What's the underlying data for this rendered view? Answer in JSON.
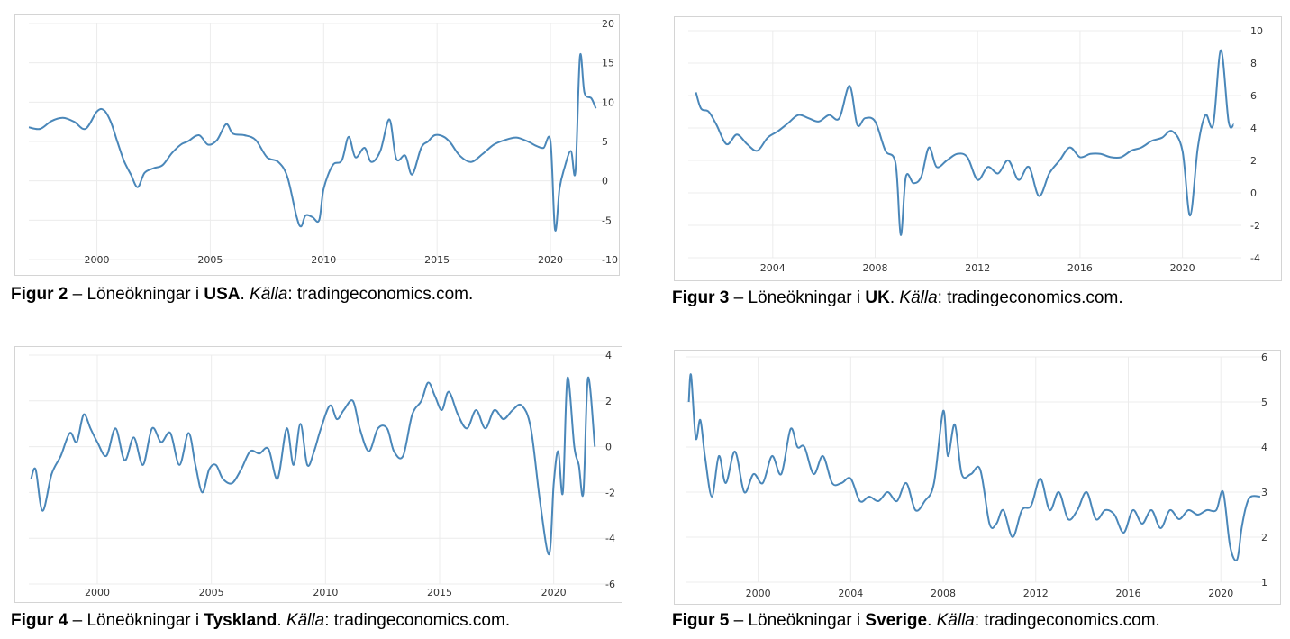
{
  "chart_data": [
    {
      "type": "line",
      "country": "USA",
      "caption": {
        "fig": "Figur 2",
        "dash": " – Löneökningar i ",
        "country": "USA",
        "dot": ". ",
        "source_label": "Källa",
        "source": ": tradingeconomics.com."
      },
      "xticks": [
        2000,
        2005,
        2010,
        2015,
        2020
      ],
      "xlim": [
        1997.0,
        2022.5
      ],
      "yticks": [
        20,
        15,
        10,
        5,
        0,
        -5,
        -10
      ],
      "ylim": [
        -10,
        20
      ],
      "series": [
        {
          "x": [
            1997.0,
            1997.5,
            1998.0,
            1998.5,
            1999.0,
            1999.5,
            2000.0,
            2000.3,
            2000.6,
            2000.9,
            2001.2,
            2001.5,
            2001.8,
            2002.1,
            2002.5,
            2002.9,
            2003.3,
            2003.7,
            2004.0,
            2004.5,
            2004.9,
            2005.3,
            2005.7,
            2006.0,
            2006.5,
            2007.0,
            2007.5,
            2008.0,
            2008.4,
            2008.8,
            2009.0,
            2009.2,
            2009.5,
            2009.8,
            2010.0,
            2010.4,
            2010.8,
            2011.1,
            2011.4,
            2011.8,
            2012.1,
            2012.5,
            2012.9,
            2013.2,
            2013.6,
            2013.9,
            2014.3,
            2014.6,
            2014.9,
            2015.3,
            2015.6,
            2016.0,
            2016.5,
            2017.0,
            2017.5,
            2018.0,
            2018.5,
            2019.0,
            2019.4,
            2019.7,
            2020.0,
            2020.2,
            2020.4,
            2020.6,
            2020.9,
            2021.1,
            2021.3,
            2021.5,
            2021.8,
            2022.0
          ],
          "y": [
            6.8,
            6.6,
            7.6,
            8.0,
            7.5,
            6.6,
            8.8,
            9.0,
            7.6,
            5.0,
            2.5,
            0.8,
            -0.8,
            1.0,
            1.6,
            2.0,
            3.5,
            4.6,
            5.0,
            5.8,
            4.6,
            5.2,
            7.2,
            6.0,
            5.8,
            5.2,
            3.0,
            2.4,
            0.5,
            -4.5,
            -5.8,
            -4.4,
            -4.6,
            -5.0,
            -1.0,
            2.0,
            2.6,
            5.6,
            3.0,
            4.2,
            2.4,
            3.8,
            7.8,
            2.8,
            3.2,
            0.8,
            4.2,
            5.0,
            5.8,
            5.6,
            4.8,
            3.2,
            2.4,
            3.4,
            4.6,
            5.2,
            5.5,
            5.0,
            4.4,
            4.2,
            5.0,
            -6.2,
            -1.0,
            1.5,
            3.8,
            1.2,
            15.8,
            11.2,
            10.5,
            9.2
          ]
        }
      ]
    },
    {
      "type": "line",
      "country": "UK",
      "caption": {
        "fig": "Figur 3",
        "dash": " – Löneökningar i ",
        "country": "UK",
        "dot": ". ",
        "source_label": "Källa",
        "source": ": tradingeconomics.com."
      },
      "xticks": [
        2004,
        2008,
        2012,
        2016,
        2020
      ],
      "xlim": [
        2000.7,
        2022.3
      ],
      "yticks": [
        10,
        8,
        6,
        4,
        2,
        0,
        -2,
        -4
      ],
      "ylim": [
        -4,
        10
      ],
      "series": [
        {
          "x": [
            2001.0,
            2001.2,
            2001.5,
            2001.8,
            2002.2,
            2002.6,
            2003.0,
            2003.4,
            2003.8,
            2004.2,
            2004.6,
            2005.0,
            2005.4,
            2005.8,
            2006.2,
            2006.6,
            2007.0,
            2007.3,
            2007.6,
            2008.0,
            2008.4,
            2008.8,
            2009.0,
            2009.2,
            2009.5,
            2009.8,
            2010.1,
            2010.4,
            2010.8,
            2011.2,
            2011.6,
            2012.0,
            2012.4,
            2012.8,
            2013.2,
            2013.6,
            2014.0,
            2014.4,
            2014.8,
            2015.2,
            2015.6,
            2016.0,
            2016.4,
            2016.8,
            2017.2,
            2017.6,
            2018.0,
            2018.4,
            2018.8,
            2019.2,
            2019.6,
            2020.0,
            2020.3,
            2020.6,
            2020.9,
            2021.2,
            2021.5,
            2021.8,
            2022.0
          ],
          "y": [
            6.2,
            5.2,
            5.0,
            4.2,
            3.0,
            3.6,
            3.0,
            2.6,
            3.4,
            3.8,
            4.3,
            4.8,
            4.6,
            4.4,
            4.8,
            4.6,
            6.6,
            4.2,
            4.6,
            4.4,
            2.6,
            1.8,
            -2.6,
            1.0,
            0.6,
            1.0,
            2.8,
            1.6,
            2.0,
            2.4,
            2.2,
            0.8,
            1.6,
            1.2,
            2.0,
            0.8,
            1.6,
            -0.2,
            1.2,
            2.0,
            2.8,
            2.2,
            2.4,
            2.4,
            2.2,
            2.2,
            2.6,
            2.8,
            3.2,
            3.4,
            3.8,
            2.6,
            -1.4,
            2.8,
            4.8,
            4.2,
            8.8,
            4.4,
            4.2
          ]
        }
      ]
    },
    {
      "type": "line",
      "country": "Tyskland",
      "caption": {
        "fig": "Figur 4",
        "dash": " – Löneökningar i ",
        "country": "Tyskland",
        "dot": ". ",
        "source_label": "Källa",
        "source": ": tradingeconomics.com."
      },
      "xticks": [
        2000,
        2005,
        2010,
        2015,
        2020
      ],
      "xlim": [
        1997.0,
        2022.5
      ],
      "yticks": [
        4,
        2,
        0,
        -2,
        -4,
        -6
      ],
      "ylim": [
        -6,
        4
      ],
      "series": [
        {
          "x": [
            1997.1,
            1997.3,
            1997.6,
            1998.0,
            1998.4,
            1998.8,
            1999.1,
            1999.4,
            1999.7,
            2000.0,
            2000.4,
            2000.8,
            2001.2,
            2001.6,
            2002.0,
            2002.4,
            2002.8,
            2003.2,
            2003.6,
            2004.0,
            2004.3,
            2004.6,
            2004.9,
            2005.2,
            2005.5,
            2005.9,
            2006.3,
            2006.7,
            2007.1,
            2007.5,
            2007.9,
            2008.3,
            2008.6,
            2008.9,
            2009.2,
            2009.5,
            2009.8,
            2010.2,
            2010.5,
            2010.8,
            2011.2,
            2011.5,
            2011.9,
            2012.3,
            2012.7,
            2013.0,
            2013.4,
            2013.8,
            2014.2,
            2014.5,
            2014.8,
            2015.1,
            2015.4,
            2015.8,
            2016.2,
            2016.6,
            2017.0,
            2017.4,
            2017.8,
            2018.2,
            2018.6,
            2019.0,
            2019.4,
            2019.8,
            2020.0,
            2020.2,
            2020.4,
            2020.6,
            2020.9,
            2021.1,
            2021.3,
            2021.5,
            2021.8
          ],
          "y": [
            -1.4,
            -1.0,
            -2.8,
            -1.2,
            -0.4,
            0.6,
            0.2,
            1.4,
            0.8,
            0.2,
            -0.4,
            0.8,
            -0.6,
            0.4,
            -0.8,
            0.8,
            0.2,
            0.6,
            -0.8,
            0.6,
            -0.8,
            -2.0,
            -1.0,
            -0.8,
            -1.4,
            -1.6,
            -1.0,
            -0.2,
            -0.3,
            -0.1,
            -1.4,
            0.8,
            -0.8,
            1.0,
            -0.8,
            -0.2,
            0.8,
            1.8,
            1.2,
            1.6,
            2.0,
            0.8,
            -0.2,
            0.8,
            0.8,
            -0.2,
            -0.4,
            1.4,
            2.0,
            2.8,
            2.2,
            1.6,
            2.4,
            1.4,
            0.8,
            1.6,
            0.8,
            1.6,
            1.2,
            1.6,
            1.8,
            0.8,
            -2.4,
            -4.7,
            -1.6,
            -0.2,
            -2.0,
            3.0,
            0.0,
            -0.8,
            -2.0,
            3.0,
            0.0
          ]
        }
      ]
    },
    {
      "type": "line",
      "country": "Sverige",
      "caption": {
        "fig": "Figur 5",
        "dash": " – Löneökningar i ",
        "country": "Sverige",
        "dot": ". ",
        "source_label": "Källa",
        "source": ": tradingeconomics.com."
      },
      "xticks": [
        2000,
        2004,
        2008,
        2012,
        2016,
        2020
      ],
      "xlim": [
        1996.9,
        2021.9
      ],
      "yticks": [
        6,
        5,
        4,
        3,
        2,
        1
      ],
      "ylim": [
        1,
        6
      ],
      "series": [
        {
          "x": [
            1997.0,
            1997.1,
            1997.3,
            1997.5,
            1997.7,
            1998.0,
            1998.3,
            1998.6,
            1999.0,
            1999.4,
            1999.8,
            2000.2,
            2000.6,
            2001.0,
            2001.4,
            2001.7,
            2002.0,
            2002.4,
            2002.8,
            2003.2,
            2003.6,
            2004.0,
            2004.4,
            2004.8,
            2005.2,
            2005.6,
            2006.0,
            2006.4,
            2006.8,
            2007.2,
            2007.6,
            2008.0,
            2008.2,
            2008.5,
            2008.8,
            2009.2,
            2009.6,
            2010.0,
            2010.3,
            2010.6,
            2011.0,
            2011.4,
            2011.8,
            2012.2,
            2012.6,
            2013.0,
            2013.4,
            2013.8,
            2014.2,
            2014.6,
            2015.0,
            2015.4,
            2015.8,
            2016.2,
            2016.6,
            2017.0,
            2017.4,
            2017.8,
            2018.2,
            2018.6,
            2019.0,
            2019.4,
            2019.8,
            2020.1,
            2020.4,
            2020.7,
            2020.9,
            2021.1,
            2021.3,
            2021.7
          ],
          "y": [
            5.0,
            5.6,
            4.2,
            4.6,
            3.8,
            2.9,
            3.8,
            3.2,
            3.9,
            3.0,
            3.4,
            3.2,
            3.8,
            3.4,
            4.4,
            4.0,
            4.0,
            3.4,
            3.8,
            3.2,
            3.2,
            3.3,
            2.8,
            2.9,
            2.8,
            3.0,
            2.8,
            3.2,
            2.6,
            2.8,
            3.2,
            4.8,
            3.8,
            4.5,
            3.4,
            3.4,
            3.5,
            2.3,
            2.3,
            2.6,
            2.0,
            2.6,
            2.7,
            3.3,
            2.6,
            3.0,
            2.4,
            2.6,
            3.0,
            2.4,
            2.6,
            2.5,
            2.1,
            2.6,
            2.3,
            2.6,
            2.2,
            2.6,
            2.4,
            2.6,
            2.5,
            2.6,
            2.6,
            3.0,
            1.8,
            1.5,
            2.2,
            2.7,
            2.9,
            2.9
          ]
        }
      ]
    }
  ]
}
